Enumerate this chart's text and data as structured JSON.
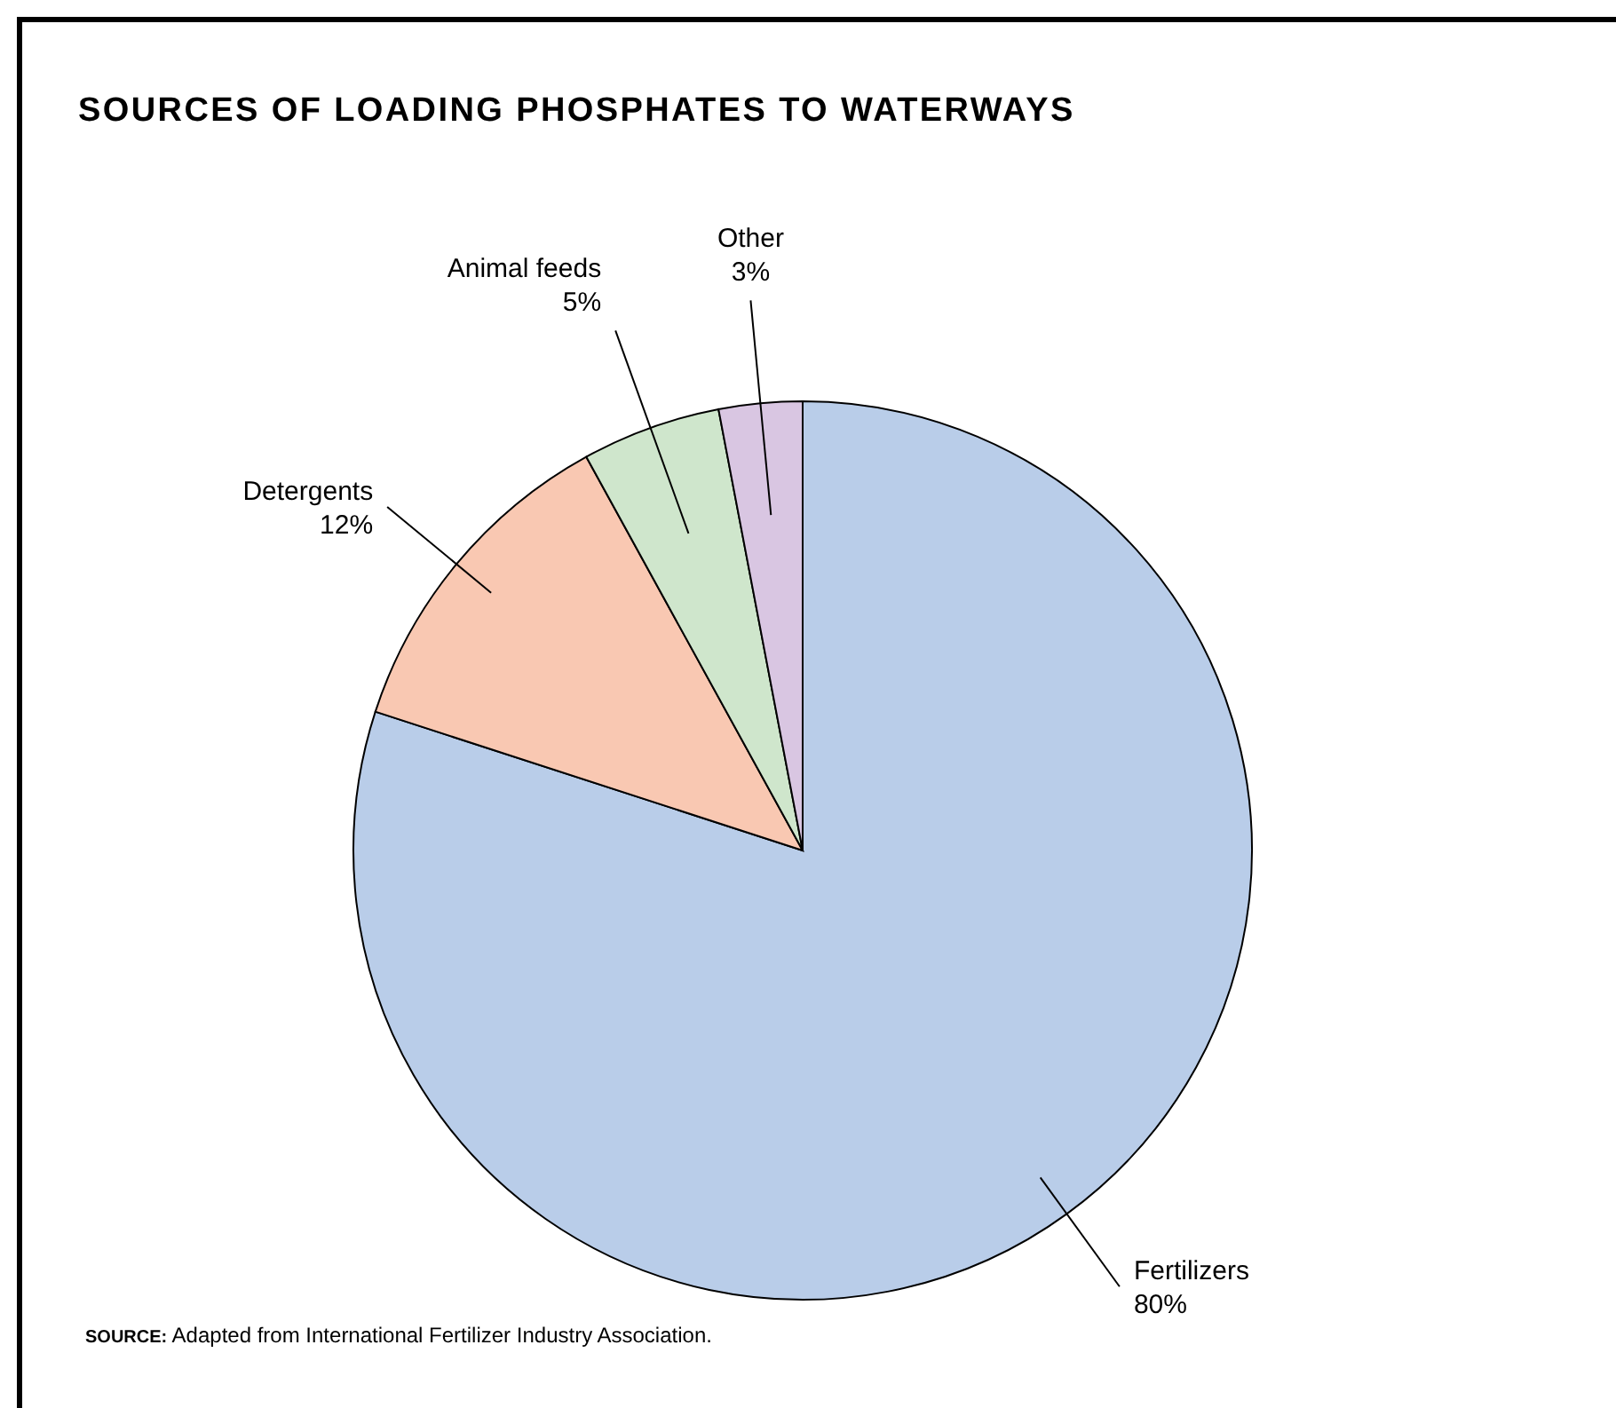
{
  "chart_data": {
    "type": "pie",
    "title": "SOURCES OF LOADING PHOSPHATES TO WATERWAYS",
    "categories": [
      "Fertilizers",
      "Detergents",
      "Animal feeds",
      "Other"
    ],
    "values": [
      80,
      12,
      5,
      3
    ],
    "colors": [
      "#b9cde9",
      "#f9c8b2",
      "#cfe6cc",
      "#d9c6e2"
    ],
    "annotations": [
      "SOURCE: Adapted from International Fertilizer Industry Association."
    ],
    "value_labels": [
      "80%",
      "12%",
      "5%",
      "3%"
    ]
  }
}
